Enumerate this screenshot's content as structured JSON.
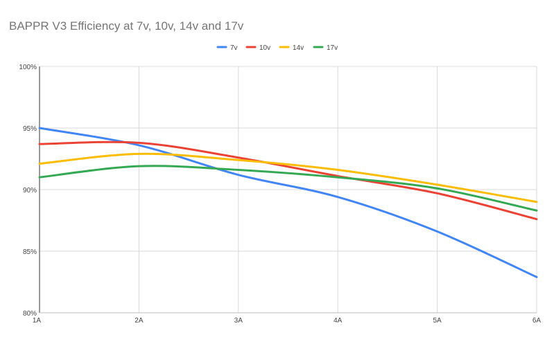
{
  "chart_data": {
    "type": "line",
    "title": "BAPPR V3 Efficiency at 7v, 10v, 14v and 17v",
    "xlabel": "",
    "ylabel": "",
    "categories": [
      "1A",
      "2A",
      "3A",
      "4A",
      "5A",
      "6A"
    ],
    "y_ticks": [
      "80%",
      "85%",
      "90%",
      "95%",
      "100%"
    ],
    "ylim": [
      80,
      100
    ],
    "grid": true,
    "smooth": true,
    "legend_position": "top",
    "series": [
      {
        "name": "7v",
        "color": "#4285F4",
        "values": [
          95.0,
          93.6,
          91.2,
          89.4,
          86.6,
          82.9
        ]
      },
      {
        "name": "10v",
        "color": "#EA4335",
        "values": [
          93.7,
          93.8,
          92.6,
          91.1,
          89.7,
          87.6
        ]
      },
      {
        "name": "14v",
        "color": "#FBBC04",
        "values": [
          92.1,
          92.9,
          92.4,
          91.6,
          90.4,
          89.0
        ]
      },
      {
        "name": "17v",
        "color": "#34A853",
        "values": [
          91.0,
          91.9,
          91.6,
          91.0,
          90.1,
          88.3
        ]
      }
    ]
  }
}
